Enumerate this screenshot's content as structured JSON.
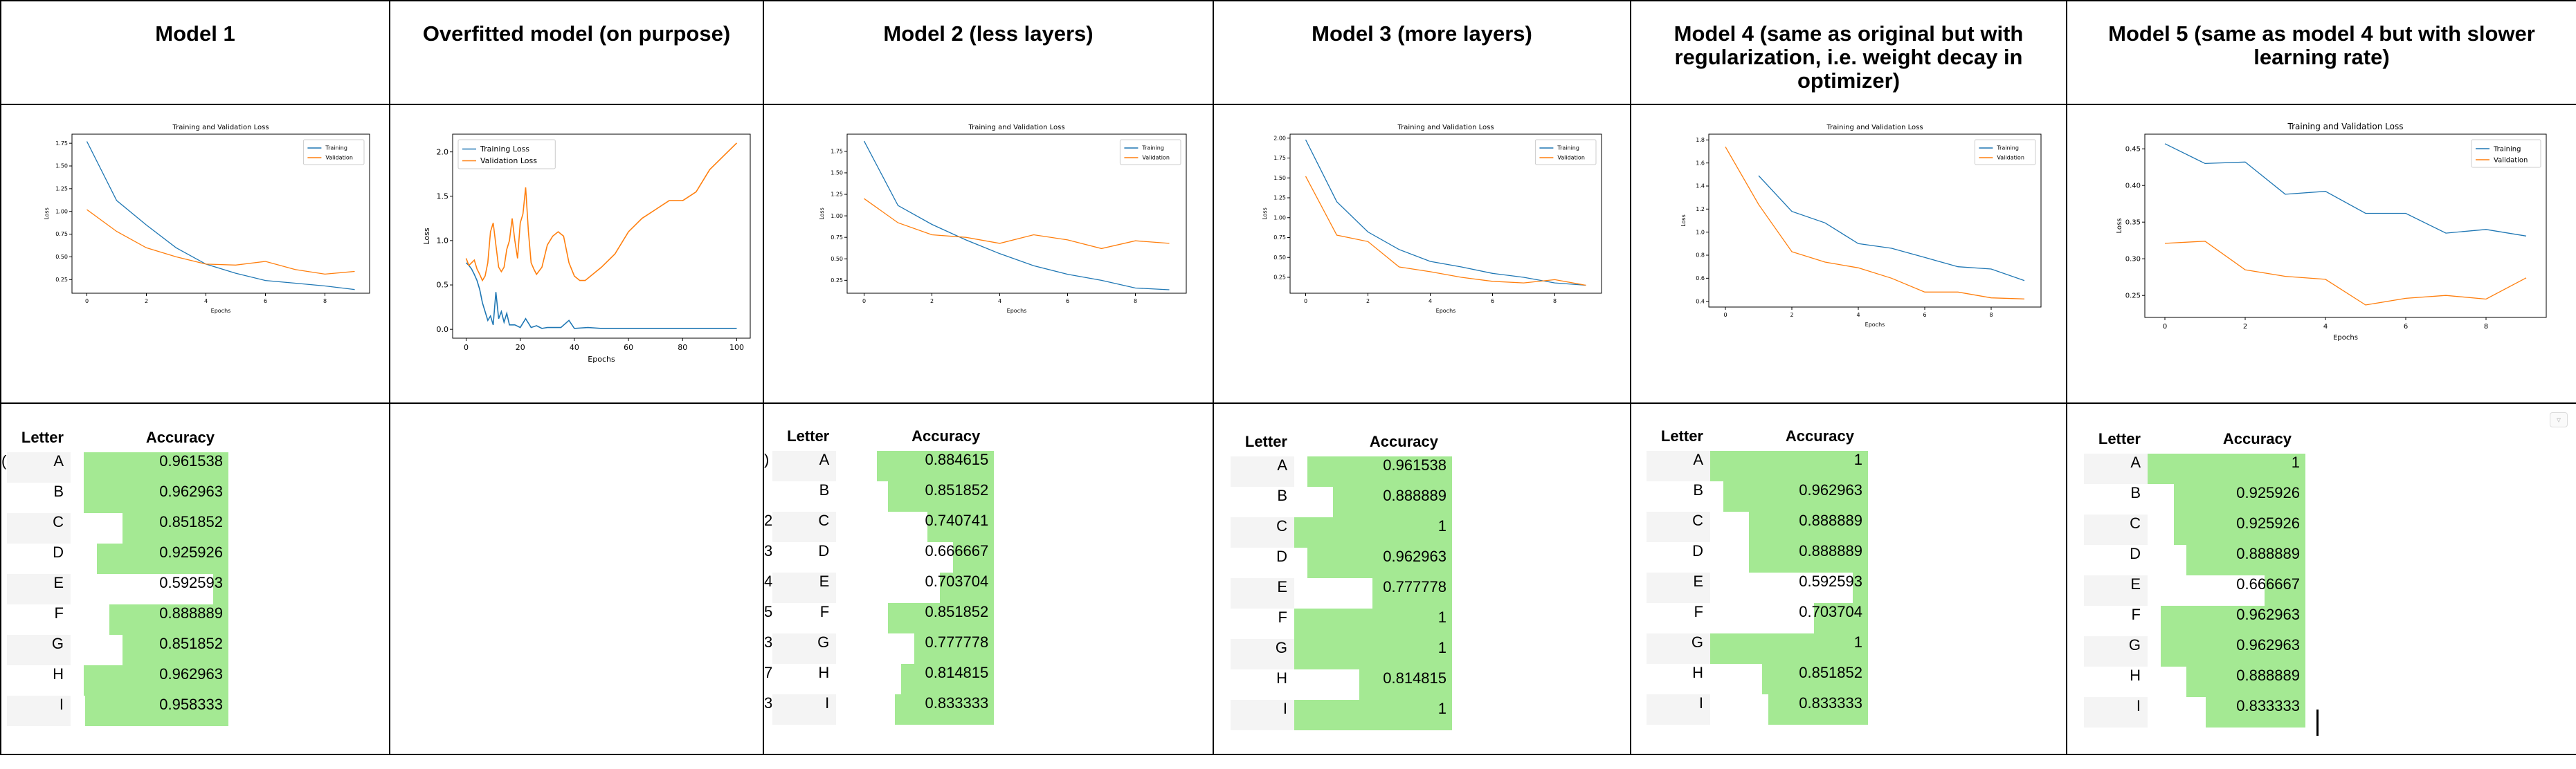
{
  "columns": [
    {
      "header": "Model 1",
      "plot": {
        "type": "line",
        "title": "Training and Validation Loss",
        "xlabel": "Epochs",
        "ylabel": "Loss",
        "xlim": [
          -0.5,
          9.5
        ],
        "ylim": [
          0.1,
          1.85
        ],
        "xticks": [
          0,
          2,
          4,
          6,
          8
        ],
        "yticks": [
          0.25,
          0.5,
          0.75,
          1.0,
          1.25,
          1.5,
          1.75
        ],
        "ytick_labels": [
          "0.25",
          "0.50",
          "0.75",
          "1.00",
          "1.25",
          "1.50",
          "1.75"
        ],
        "legend": "top-right",
        "series": [
          {
            "name": "Training",
            "color": "#1f77b4",
            "x": [
              0,
              1,
              2,
              3,
              4,
              5,
              6,
              7,
              8,
              9
            ],
            "y": [
              1.77,
              1.12,
              0.85,
              0.6,
              0.42,
              0.32,
              0.24,
              0.21,
              0.18,
              0.14
            ]
          },
          {
            "name": "Validation",
            "color": "#ff7f0e",
            "x": [
              0,
              1,
              2,
              3,
              4,
              5,
              6,
              7,
              8,
              9
            ],
            "y": [
              1.02,
              0.78,
              0.6,
              0.5,
              0.42,
              0.41,
              0.45,
              0.36,
              0.31,
              0.34
            ]
          }
        ]
      },
      "accuracy": {
        "header_letter": "Letter",
        "header_accuracy": "Accuracy",
        "left_cut": [
          "(",
          "",
          "",
          "",
          "",
          "",
          "",
          "",
          ""
        ],
        "rows": [
          {
            "letter": "A",
            "value": "0.961538",
            "v": 0.961538
          },
          {
            "letter": "B",
            "value": "0.962963",
            "v": 0.962963
          },
          {
            "letter": "C",
            "value": "0.851852",
            "v": 0.851852
          },
          {
            "letter": "D",
            "value": "0.925926",
            "v": 0.925926
          },
          {
            "letter": "E",
            "value": "0.592593",
            "v": 0.592593
          },
          {
            "letter": "F",
            "value": "0.888889",
            "v": 0.888889
          },
          {
            "letter": "G",
            "value": "0.851852",
            "v": 0.851852
          },
          {
            "letter": "H",
            "value": "0.962963",
            "v": 0.962963
          },
          {
            "letter": "I",
            "value": "0.958333",
            "v": 0.958333
          }
        ]
      }
    },
    {
      "header": "Overfitted model (on purpose)",
      "plot": {
        "type": "line",
        "title": "",
        "xlabel": "Epochs",
        "ylabel": "Loss",
        "xlim": [
          -5,
          105
        ],
        "ylim": [
          -0.1,
          2.2
        ],
        "xticks": [
          0,
          20,
          40,
          60,
          80,
          100
        ],
        "yticks": [
          0.0,
          0.5,
          1.0,
          1.5,
          2.0
        ],
        "ytick_labels": [
          "0.0",
          "0.5",
          "1.0",
          "1.5",
          "2.0"
        ],
        "legend": "top-left",
        "series": [
          {
            "name": "Training Loss",
            "color": "#1f77b4",
            "x": [
              0,
              1,
              2,
              3,
              4,
              5,
              6,
              7,
              8,
              9,
              10,
              11,
              12,
              13,
              14,
              15,
              16,
              18,
              20,
              22,
              24,
              26,
              28,
              30,
              35,
              38,
              40,
              45,
              50,
              60,
              70,
              80,
              90,
              100
            ],
            "y": [
              0.75,
              0.72,
              0.68,
              0.62,
              0.55,
              0.45,
              0.3,
              0.2,
              0.1,
              0.15,
              0.05,
              0.42,
              0.12,
              0.2,
              0.08,
              0.18,
              0.05,
              0.05,
              0.02,
              0.12,
              0.02,
              0.04,
              0.01,
              0.02,
              0.02,
              0.1,
              0.01,
              0.02,
              0.01,
              0.01,
              0.01,
              0.01,
              0.01,
              0.01
            ]
          },
          {
            "name": "Validation Loss",
            "color": "#ff7f0e",
            "x": [
              0,
              1,
              2,
              3,
              4,
              5,
              6,
              7,
              8,
              9,
              10,
              11,
              12,
              13,
              14,
              15,
              16,
              17,
              18,
              19,
              20,
              21,
              22,
              23,
              24,
              25,
              26,
              28,
              30,
              32,
              34,
              36,
              38,
              40,
              42,
              44,
              50,
              55,
              60,
              65,
              70,
              75,
              80,
              85,
              90,
              95,
              100
            ],
            "y": [
              0.8,
              0.72,
              0.75,
              0.78,
              0.68,
              0.62,
              0.55,
              0.6,
              0.75,
              1.1,
              1.2,
              0.95,
              0.7,
              0.65,
              0.7,
              0.9,
              1.0,
              1.25,
              1.0,
              0.8,
              1.2,
              1.3,
              1.6,
              1.1,
              0.75,
              0.68,
              0.62,
              0.7,
              0.95,
              1.05,
              1.1,
              1.05,
              0.75,
              0.6,
              0.55,
              0.55,
              0.7,
              0.85,
              1.1,
              1.25,
              1.35,
              1.45,
              1.45,
              1.55,
              1.8,
              1.95,
              2.1
            ]
          }
        ]
      },
      "accuracy": null
    },
    {
      "header": "Model 2 (less layers)",
      "plot": {
        "type": "line",
        "title": "Training and Validation Loss",
        "xlabel": "Epochs",
        "ylabel": "Loss",
        "xlim": [
          -0.5,
          9.5
        ],
        "ylim": [
          0.1,
          1.95
        ],
        "xticks": [
          0,
          2,
          4,
          6,
          8
        ],
        "yticks": [
          0.25,
          0.5,
          0.75,
          1.0,
          1.25,
          1.5,
          1.75
        ],
        "ytick_labels": [
          "0.25",
          "0.50",
          "0.75",
          "1.00",
          "1.25",
          "1.50",
          "1.75"
        ],
        "legend": "top-right",
        "series": [
          {
            "name": "Training",
            "color": "#1f77b4",
            "x": [
              0,
              1,
              2,
              3,
              4,
              5,
              6,
              7,
              8,
              9
            ],
            "y": [
              1.87,
              1.12,
              0.9,
              0.72,
              0.56,
              0.42,
              0.32,
              0.25,
              0.16,
              0.14
            ]
          },
          {
            "name": "Validation",
            "color": "#ff7f0e",
            "x": [
              0,
              1,
              2,
              3,
              4,
              5,
              6,
              7,
              8,
              9
            ],
            "y": [
              1.2,
              0.92,
              0.78,
              0.75,
              0.68,
              0.78,
              0.72,
              0.62,
              0.71,
              0.68
            ]
          }
        ]
      },
      "accuracy": {
        "header_letter": "Letter",
        "header_accuracy": "Accuracy",
        "left_cut": [
          ")",
          "",
          "2",
          "3",
          "4",
          "5",
          "3",
          "7",
          "3"
        ],
        "rows": [
          {
            "letter": "A",
            "value": "0.884615",
            "v": 0.884615
          },
          {
            "letter": "B",
            "value": "0.851852",
            "v": 0.851852
          },
          {
            "letter": "C",
            "value": "0.740741",
            "v": 0.740741
          },
          {
            "letter": "D",
            "value": "0.666667",
            "v": 0.666667
          },
          {
            "letter": "E",
            "value": "0.703704",
            "v": 0.703704
          },
          {
            "letter": "F",
            "value": "0.851852",
            "v": 0.851852
          },
          {
            "letter": "G",
            "value": "0.777778",
            "v": 0.777778
          },
          {
            "letter": "H",
            "value": "0.814815",
            "v": 0.814815
          },
          {
            "letter": "I",
            "value": "0.833333",
            "v": 0.833333
          }
        ]
      }
    },
    {
      "header": "Model 3 (more layers)",
      "plot": {
        "type": "line",
        "title": "Training and Validation Loss",
        "xlabel": "Epochs",
        "ylabel": "Loss",
        "xlim": [
          -0.5,
          9.5
        ],
        "ylim": [
          0.05,
          2.05
        ],
        "xticks": [
          0,
          2,
          4,
          6,
          8
        ],
        "yticks": [
          0.25,
          0.5,
          0.75,
          1.0,
          1.25,
          1.5,
          1.75,
          2.0
        ],
        "ytick_labels": [
          "0.25",
          "0.50",
          "0.75",
          "1.00",
          "1.25",
          "1.50",
          "1.75",
          "2.00"
        ],
        "legend": "top-right",
        "series": [
          {
            "name": "Training",
            "color": "#1f77b4",
            "x": [
              0,
              1,
              2,
              3,
              4,
              5,
              6,
              7,
              8,
              9
            ],
            "y": [
              1.98,
              1.2,
              0.82,
              0.6,
              0.45,
              0.38,
              0.3,
              0.25,
              0.18,
              0.15
            ]
          },
          {
            "name": "Validation",
            "color": "#ff7f0e",
            "x": [
              0,
              1,
              2,
              3,
              4,
              5,
              6,
              7,
              8,
              9
            ],
            "y": [
              1.52,
              0.78,
              0.7,
              0.38,
              0.32,
              0.25,
              0.2,
              0.18,
              0.22,
              0.15
            ]
          }
        ]
      },
      "accuracy": {
        "header_letter": "Letter",
        "header_accuracy": "Accuracy",
        "left_cut": [
          "",
          "",
          "",
          "",
          "",
          "",
          "",
          "",
          ""
        ],
        "rows": [
          {
            "letter": "A",
            "value": "0.961538",
            "v": 0.961538
          },
          {
            "letter": "B",
            "value": "0.888889",
            "v": 0.888889
          },
          {
            "letter": "C",
            "value": "1",
            "v": 1
          },
          {
            "letter": "D",
            "value": "0.962963",
            "v": 0.962963
          },
          {
            "letter": "E",
            "value": "0.777778",
            "v": 0.777778
          },
          {
            "letter": "F",
            "value": "1",
            "v": 1
          },
          {
            "letter": "G",
            "value": "1",
            "v": 1
          },
          {
            "letter": "H",
            "value": "0.814815",
            "v": 0.814815
          },
          {
            "letter": "I",
            "value": "1",
            "v": 1
          }
        ]
      }
    },
    {
      "header": "Model 4 (same as original but with regularization, i.e. weight decay in optimizer)",
      "plot": {
        "type": "line",
        "title": "Training and Validation Loss",
        "xlabel": "Epochs",
        "ylabel": "Loss",
        "xlim": [
          -0.5,
          9.5
        ],
        "ylim": [
          0.35,
          1.85
        ],
        "xticks": [
          0,
          2,
          4,
          6,
          8
        ],
        "yticks": [
          0.4,
          0.6,
          0.8,
          1.0,
          1.2,
          1.4,
          1.6,
          1.8
        ],
        "ytick_labels": [
          "0.4",
          "0.6",
          "0.8",
          "1.0",
          "1.2",
          "1.4",
          "1.6",
          "1.8"
        ],
        "legend": "top-right",
        "series": [
          {
            "name": "Training",
            "color": "#1f77b4",
            "x": [
              1,
              2,
              3,
              4,
              5,
              6,
              7,
              8,
              9
            ],
            "y": [
              1.49,
              1.18,
              1.08,
              0.9,
              0.86,
              0.78,
              0.7,
              0.68,
              0.58
            ]
          },
          {
            "name": "Validation",
            "color": "#ff7f0e",
            "x": [
              0,
              1,
              2,
              3,
              4,
              5,
              6,
              7,
              8,
              9
            ],
            "y": [
              1.74,
              1.24,
              0.83,
              0.74,
              0.69,
              0.6,
              0.48,
              0.48,
              0.43,
              0.42
            ]
          }
        ]
      },
      "accuracy": {
        "header_letter": "Letter",
        "header_accuracy": "Accuracy",
        "left_cut": [
          "",
          "",
          "",
          "",
          "",
          "",
          "",
          "",
          ""
        ],
        "rows": [
          {
            "letter": "A",
            "value": "1",
            "v": 1
          },
          {
            "letter": "B",
            "value": "0.962963",
            "v": 0.962963
          },
          {
            "letter": "C",
            "value": "0.888889",
            "v": 0.888889
          },
          {
            "letter": "D",
            "value": "0.888889",
            "v": 0.888889
          },
          {
            "letter": "E",
            "value": "0.592593",
            "v": 0.592593
          },
          {
            "letter": "F",
            "value": "0.703704",
            "v": 0.703704
          },
          {
            "letter": "G",
            "value": "1",
            "v": 1
          },
          {
            "letter": "H",
            "value": "0.851852",
            "v": 0.851852
          },
          {
            "letter": "I",
            "value": "0.833333",
            "v": 0.833333
          }
        ]
      }
    },
    {
      "header": "Model 5 (same as model 4 but with slower learning rate)",
      "plot": {
        "type": "line",
        "title": "Training and Validation Loss",
        "xlabel": "Epochs",
        "ylabel": "Loss",
        "xlim": [
          -0.5,
          9.5
        ],
        "ylim": [
          0.22,
          0.47
        ],
        "xticks": [
          0,
          2,
          4,
          6,
          8
        ],
        "yticks": [
          0.25,
          0.3,
          0.35,
          0.4,
          0.45
        ],
        "ytick_labels": [
          "0.25",
          "0.30",
          "0.35",
          "0.40",
          "0.45"
        ],
        "legend": "top-right",
        "series": [
          {
            "name": "Training",
            "color": "#1f77b4",
            "x": [
              0,
              1,
              2,
              3,
              4,
              5,
              6,
              7,
              8,
              9
            ],
            "y": [
              0.457,
              0.43,
              0.432,
              0.388,
              0.392,
              0.362,
              0.362,
              0.335,
              0.34,
              0.331
            ]
          },
          {
            "name": "Validation",
            "color": "#ff7f0e",
            "x": [
              0,
              1,
              2,
              3,
              4,
              5,
              6,
              7,
              8,
              9
            ],
            "y": [
              0.321,
              0.324,
              0.285,
              0.276,
              0.272,
              0.237,
              0.246,
              0.25,
              0.245,
              0.274
            ]
          }
        ]
      },
      "accuracy": {
        "header_letter": "Letter",
        "header_accuracy": "Accuracy",
        "left_cut": [
          "",
          "",
          "",
          "",
          "",
          "",
          "",
          "",
          ""
        ],
        "rows": [
          {
            "letter": "A",
            "value": "1",
            "v": 1
          },
          {
            "letter": "B",
            "value": "0.925926",
            "v": 0.925926
          },
          {
            "letter": "C",
            "value": "0.925926",
            "v": 0.925926
          },
          {
            "letter": "D",
            "value": "0.888889",
            "v": 0.888889
          },
          {
            "letter": "E",
            "value": "0.666667",
            "v": 0.666667
          },
          {
            "letter": "F",
            "value": "0.962963",
            "v": 0.962963
          },
          {
            "letter": "G",
            "value": "0.962963",
            "v": 0.962963
          },
          {
            "letter": "H",
            "value": "0.888889",
            "v": 0.888889
          },
          {
            "letter": "I",
            "value": "0.833333",
            "v": 0.833333
          }
        ]
      }
    }
  ],
  "colors": {
    "bar": "#a4e993",
    "stripe": "#f4f4f4",
    "training": "#1f77b4",
    "validation": "#ff7f0e"
  },
  "corner_icon": "chevron-down-icon"
}
